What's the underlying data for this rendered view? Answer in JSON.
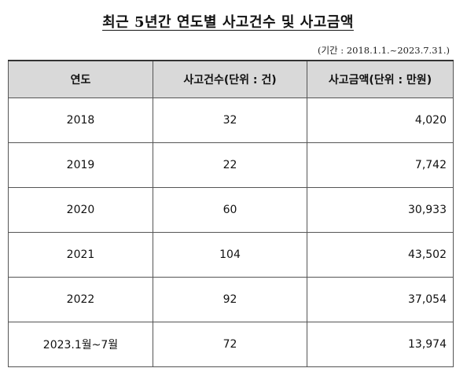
{
  "title": "최근 5년간 연도별 사고건수 및 사고금액",
  "period": "(기간 : 2018.1.1.~2023.7.31.)",
  "table": {
    "headers": [
      "연도",
      "사고건수(단위 : 건)",
      "사고금액(단위 : 만원)"
    ],
    "rows": [
      {
        "year": "2018",
        "count": "32",
        "amount": "4,020"
      },
      {
        "year": "2019",
        "count": "22",
        "amount": "7,742"
      },
      {
        "year": "2020",
        "count": "60",
        "amount": "30,933"
      },
      {
        "year": "2021",
        "count": "104",
        "amount": "43,502"
      },
      {
        "year": "2022",
        "count": "92",
        "amount": "37,054"
      },
      {
        "year": "2023.1월~7월",
        "count": "72",
        "amount": "13,974"
      }
    ]
  }
}
